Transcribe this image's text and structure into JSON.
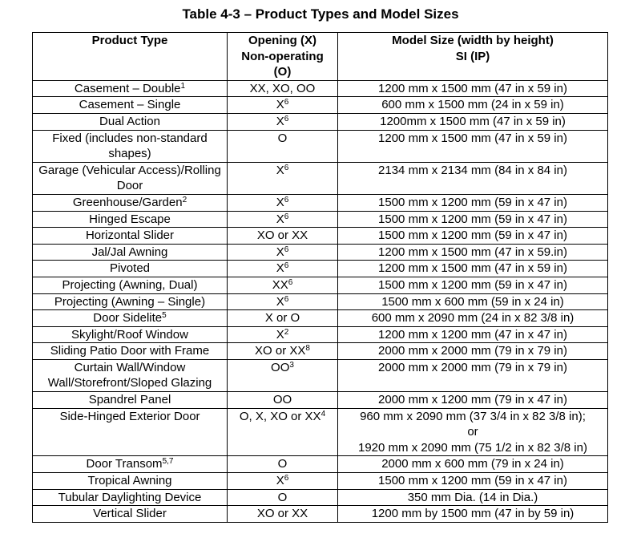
{
  "title": "Table 4-3 – Product Types and Model Sizes",
  "table": {
    "header": [
      [
        "Product Type"
      ],
      [
        "Opening (X)",
        "Non-operating",
        "(O)"
      ],
      [
        "Model Size (width by height)",
        "SI (IP)"
      ]
    ],
    "rows": [
      [
        {
          "text": "Casement – Double",
          "sup": "1"
        },
        "XX, XO, OO",
        "1200 mm x 1500 mm (47 in x 59 in)"
      ],
      [
        "Casement – Single",
        {
          "text": "X",
          "sup": "6"
        },
        "600 mm x 1500 mm (24 in x 59 in)"
      ],
      [
        "Dual Action",
        {
          "text": "X",
          "sup": "6"
        },
        "1200mm x 1500 mm (47 in x 59 in)"
      ],
      [
        "Fixed (includes non-standard shapes)",
        "O",
        "1200 mm x 1500 mm (47 in x 59 in)"
      ],
      [
        "Garage (Vehicular Access)/Rolling Door",
        {
          "text": "X",
          "sup": "6"
        },
        "2134 mm x 2134 mm (84 in x 84 in)"
      ],
      [
        {
          "text": "Greenhouse/Garden",
          "sup": "2"
        },
        {
          "text": "X",
          "sup": "6"
        },
        "1500 mm x 1200 mm (59 in x 47 in)"
      ],
      [
        "Hinged Escape",
        {
          "text": "X",
          "sup": "6"
        },
        "1500 mm x 1200 mm (59 in x 47 in)"
      ],
      [
        "Horizontal Slider",
        "XO or XX",
        "1500 mm x 1200 mm (59 in x 47 in)"
      ],
      [
        "Jal/Jal Awning",
        {
          "text": "X",
          "sup": "6"
        },
        "1200 mm x 1500 mm (47 in x 59.in)"
      ],
      [
        "Pivoted",
        {
          "text": "X",
          "sup": "6"
        },
        "1200 mm x 1500 mm (47 in x 59 in)"
      ],
      [
        "Projecting (Awning, Dual)",
        {
          "text": "XX",
          "sup": "6"
        },
        "1500 mm x 1200 mm (59 in x 47 in)"
      ],
      [
        "Projecting (Awning – Single)",
        {
          "text": "X",
          "sup": "6"
        },
        "1500 mm x 600 mm (59 in x 24 in)"
      ],
      [
        {
          "text": "Door Sidelite",
          "sup": "5"
        },
        "X or O",
        "600 mm x 2090 mm (24 in x 82 3/8 in)"
      ],
      [
        "Skylight/Roof Window",
        {
          "text": "X",
          "sup": "2"
        },
        "1200 mm x 1200 mm (47 in x 47 in)"
      ],
      [
        "Sliding Patio Door with Frame",
        {
          "text": "XO or XX",
          "sup": "8"
        },
        "2000 mm x 2000 mm (79 in x 79 in)"
      ],
      [
        "Curtain Wall/Window Wall/Storefront/Sloped Glazing",
        {
          "text": "OO",
          "sup": "3"
        },
        "2000 mm x 2000 mm (79 in x 79 in)"
      ],
      [
        "Spandrel Panel",
        "OO",
        "2000 mm x 1200 mm (79 in x 47 in)"
      ],
      [
        "Side-Hinged Exterior Door",
        {
          "text": "O, X, XO or XX",
          "sup": "4"
        },
        [
          "960 mm x 2090 mm (37 3/4 in x 82 3/8 in);",
          "or",
          "1920 mm x 2090 mm (75 1/2 in x 82 3/8 in)"
        ]
      ],
      [
        {
          "text": "Door Transom",
          "sup": "5,7"
        },
        "O",
        "2000 mm x 600 mm (79 in x 24 in)"
      ],
      [
        "Tropical Awning",
        {
          "text": "X",
          "sup": "6"
        },
        "1500 mm x 1200 mm (59 in x 47 in)"
      ],
      [
        "Tubular Daylighting Device",
        "O",
        "350 mm Dia. (14 in Dia.)"
      ],
      [
        "Vertical Slider",
        "XO or XX",
        "1200 mm by 1500 mm (47 in by 59 in)"
      ]
    ]
  }
}
